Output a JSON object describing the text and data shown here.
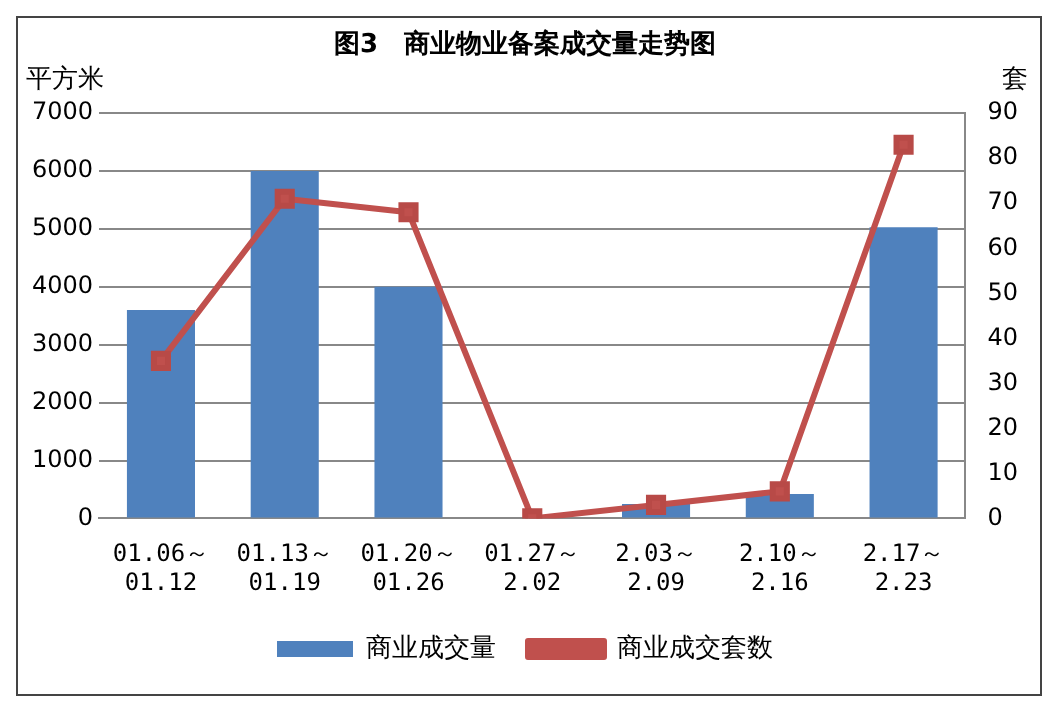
{
  "chart_data": {
    "type": "bar",
    "title": "图3　商业物业备案成交量走势图",
    "ylabel": "平方米",
    "y2label": "套",
    "categories": [
      "01.06～\n01.12",
      "01.13～\n01.19",
      "01.20～\n01.26",
      "01.27～\n2.02",
      "2.03～\n2.09",
      "2.10～\n2.16",
      "2.17～\n2.23"
    ],
    "series": [
      {
        "name": "商业成交量",
        "color": "#4f81bd",
        "values": [
          3600,
          6000,
          4000,
          0,
          250,
          420,
          5030
        ]
      },
      {
        "name": "商业成交套数",
        "type": "line",
        "axis": "y2",
        "color": "#c0504d",
        "marker": "square",
        "values": [
          35,
          71,
          68,
          0,
          3,
          6,
          83
        ]
      }
    ],
    "ylim": [
      0,
      7000
    ],
    "yticks": [
      0,
      1000,
      2000,
      3000,
      4000,
      5000,
      6000,
      7000
    ],
    "y2lim": [
      0,
      90
    ],
    "y2ticks": [
      0,
      10,
      20,
      30,
      40,
      50,
      60,
      70,
      80,
      90
    ],
    "grid": "y",
    "legend": "bottom"
  }
}
